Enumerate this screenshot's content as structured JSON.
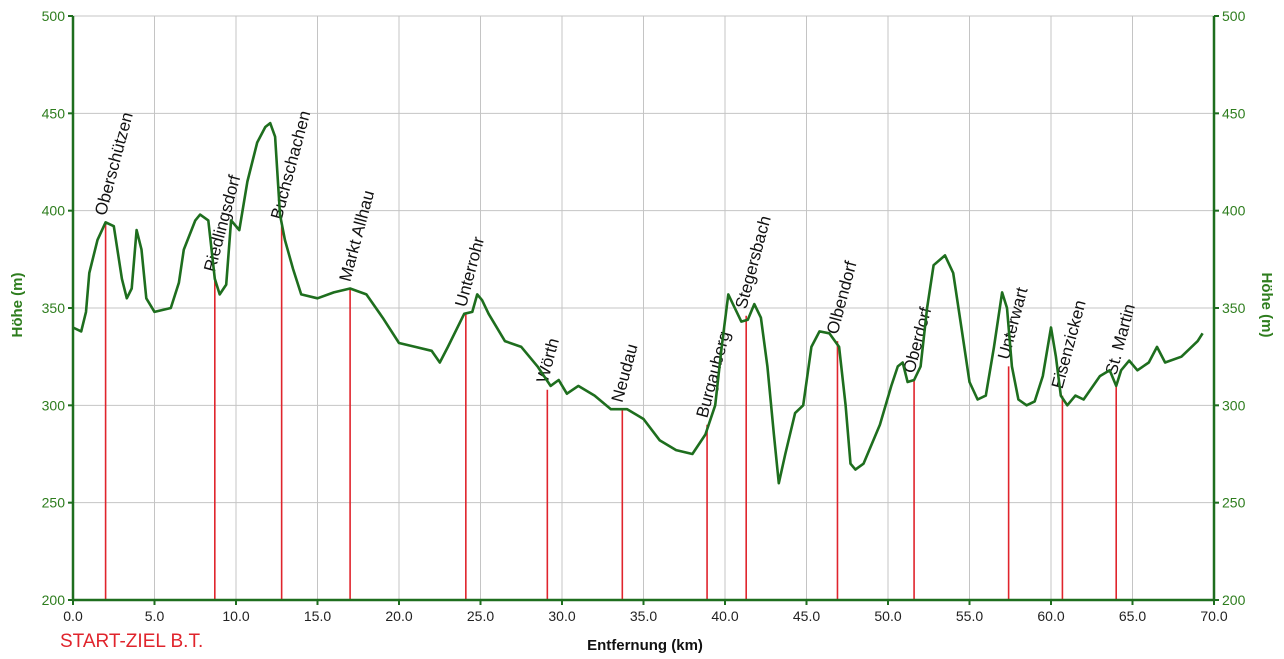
{
  "chart_data": {
    "type": "line",
    "xlabel": "Entfernung (km)",
    "ylabel": "Höhe (m)",
    "xlim": [
      0,
      70
    ],
    "ylim": [
      200,
      500
    ],
    "x_ticks": [
      "0.0",
      "5.0",
      "10.0",
      "15.0",
      "20.0",
      "25.0",
      "30.0",
      "35.0",
      "40.0",
      "45.0",
      "50.0",
      "55.0",
      "60.0",
      "65.0",
      "70.0"
    ],
    "y_ticks": [
      "200",
      "250",
      "300",
      "350",
      "400",
      "450",
      "500"
    ],
    "grid": true,
    "start_label": "START-ZIEL B.T.",
    "series": [
      {
        "color": "#1e6e1e",
        "points": [
          [
            0.0,
            340
          ],
          [
            0.5,
            338
          ],
          [
            0.8,
            348
          ],
          [
            1.0,
            368
          ],
          [
            1.5,
            385
          ],
          [
            2.0,
            394
          ],
          [
            2.5,
            392
          ],
          [
            3.0,
            365
          ],
          [
            3.3,
            355
          ],
          [
            3.6,
            360
          ],
          [
            3.9,
            390
          ],
          [
            4.2,
            380
          ],
          [
            4.5,
            355
          ],
          [
            5.0,
            348
          ],
          [
            6.0,
            350
          ],
          [
            6.5,
            363
          ],
          [
            6.8,
            380
          ],
          [
            7.5,
            395
          ],
          [
            7.8,
            398
          ],
          [
            8.3,
            395
          ],
          [
            8.7,
            365
          ],
          [
            9.0,
            357
          ],
          [
            9.4,
            362
          ],
          [
            9.7,
            395
          ],
          [
            10.2,
            390
          ],
          [
            10.7,
            415
          ],
          [
            11.3,
            435
          ],
          [
            11.8,
            443
          ],
          [
            12.1,
            445
          ],
          [
            12.4,
            438
          ],
          [
            12.7,
            398
          ],
          [
            13.0,
            385
          ],
          [
            13.5,
            370
          ],
          [
            14.0,
            357
          ],
          [
            15.0,
            355
          ],
          [
            16.0,
            358
          ],
          [
            17.0,
            360
          ],
          [
            18.0,
            357
          ],
          [
            19.0,
            345
          ],
          [
            20.0,
            332
          ],
          [
            21.0,
            330
          ],
          [
            22.0,
            328
          ],
          [
            22.5,
            322
          ],
          [
            23.0,
            330
          ],
          [
            24.0,
            347
          ],
          [
            24.5,
            348
          ],
          [
            24.8,
            357
          ],
          [
            25.1,
            354
          ],
          [
            25.5,
            347
          ],
          [
            26.5,
            333
          ],
          [
            27.5,
            330
          ],
          [
            28.5,
            320
          ],
          [
            29.3,
            310
          ],
          [
            29.8,
            313
          ],
          [
            30.3,
            306
          ],
          [
            31.0,
            310
          ],
          [
            32.0,
            305
          ],
          [
            33.0,
            298
          ],
          [
            34.0,
            298
          ],
          [
            35.0,
            293
          ],
          [
            36.0,
            282
          ],
          [
            37.0,
            277
          ],
          [
            38.0,
            275
          ],
          [
            38.8,
            285
          ],
          [
            39.4,
            300
          ],
          [
            39.8,
            330
          ],
          [
            40.2,
            357
          ],
          [
            40.6,
            350
          ],
          [
            41.0,
            343
          ],
          [
            41.4,
            344
          ],
          [
            41.8,
            352
          ],
          [
            42.2,
            345
          ],
          [
            42.6,
            320
          ],
          [
            43.0,
            285
          ],
          [
            43.3,
            260
          ],
          [
            43.7,
            275
          ],
          [
            44.3,
            296
          ],
          [
            44.8,
            300
          ],
          [
            45.3,
            330
          ],
          [
            45.8,
            338
          ],
          [
            46.4,
            337
          ],
          [
            47.0,
            330
          ],
          [
            47.4,
            300
          ],
          [
            47.7,
            270
          ],
          [
            48.0,
            267
          ],
          [
            48.5,
            270
          ],
          [
            49.5,
            290
          ],
          [
            50.2,
            310
          ],
          [
            50.6,
            320
          ],
          [
            50.9,
            322
          ],
          [
            51.2,
            312
          ],
          [
            51.6,
            313
          ],
          [
            52.0,
            320
          ],
          [
            52.4,
            350
          ],
          [
            52.8,
            372
          ],
          [
            53.5,
            377
          ],
          [
            54.0,
            368
          ],
          [
            54.5,
            340
          ],
          [
            55.0,
            312
          ],
          [
            55.5,
            303
          ],
          [
            56.0,
            305
          ],
          [
            56.5,
            330
          ],
          [
            57.0,
            358
          ],
          [
            57.3,
            350
          ],
          [
            57.6,
            320
          ],
          [
            58.0,
            303
          ],
          [
            58.5,
            300
          ],
          [
            59.0,
            302
          ],
          [
            59.5,
            315
          ],
          [
            60.0,
            340
          ],
          [
            60.3,
            325
          ],
          [
            60.6,
            305
          ],
          [
            61.0,
            300
          ],
          [
            61.5,
            305
          ],
          [
            62.0,
            303
          ],
          [
            63.0,
            315
          ],
          [
            63.6,
            318
          ],
          [
            64.0,
            310
          ],
          [
            64.3,
            318
          ],
          [
            64.8,
            323
          ],
          [
            65.3,
            318
          ],
          [
            66.0,
            322
          ],
          [
            66.5,
            330
          ],
          [
            67.0,
            322
          ],
          [
            68.0,
            325
          ],
          [
            69.0,
            333
          ],
          [
            69.3,
            337
          ]
        ]
      }
    ],
    "markers": [
      {
        "name": "Oberschützen",
        "x": 2.0,
        "y": 394
      },
      {
        "name": "Riedlingsdorf",
        "x": 8.7,
        "y": 365
      },
      {
        "name": "Buchschachen",
        "x": 12.8,
        "y": 392
      },
      {
        "name": "Markt Allhau",
        "x": 17.0,
        "y": 360
      },
      {
        "name": "Unterrohr",
        "x": 24.1,
        "y": 347
      },
      {
        "name": "Wörth",
        "x": 29.1,
        "y": 308
      },
      {
        "name": "Neudau",
        "x": 33.7,
        "y": 298
      },
      {
        "name": "Burgauberg",
        "x": 38.9,
        "y": 290
      },
      {
        "name": "Stegersbach",
        "x": 41.3,
        "y": 346
      },
      {
        "name": "Olbendorf",
        "x": 46.9,
        "y": 333
      },
      {
        "name": "Oberdorf",
        "x": 51.6,
        "y": 313
      },
      {
        "name": "Unterwart",
        "x": 57.4,
        "y": 320
      },
      {
        "name": "Eisenzicken",
        "x": 60.7,
        "y": 305
      },
      {
        "name": "St. Martin",
        "x": 64.0,
        "y": 312
      }
    ]
  }
}
